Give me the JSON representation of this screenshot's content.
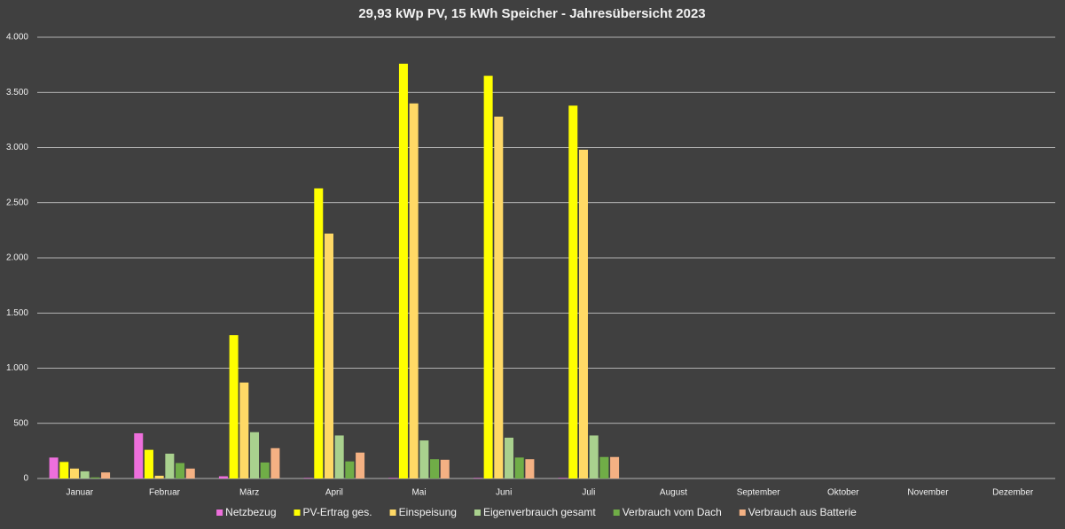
{
  "chart_data": {
    "type": "bar",
    "title": "29,93 kWp PV, 15 kWh Speicher - Jahresübersicht 2023",
    "categories": [
      "Januar",
      "Februar",
      "März",
      "April",
      "Mai",
      "Juni",
      "Juli",
      "August",
      "September",
      "Oktober",
      "November",
      "Dezember"
    ],
    "series": [
      {
        "name": "Netzbezug",
        "color": "#ee6fdc",
        "values": [
          190,
          410,
          20,
          5,
          5,
          5,
          5,
          null,
          null,
          null,
          null,
          null
        ]
      },
      {
        "name": "PV-Ertrag ges.",
        "color": "#ffff00",
        "values": [
          150,
          260,
          1300,
          2630,
          3760,
          3650,
          3380,
          null,
          null,
          null,
          null,
          null
        ]
      },
      {
        "name": "Einspeisung",
        "color": "#ffd966",
        "values": [
          90,
          25,
          870,
          2220,
          3400,
          3280,
          2980,
          null,
          null,
          null,
          null,
          null
        ]
      },
      {
        "name": "Eigenverbrauch gesamt",
        "color": "#a9d18e",
        "values": [
          65,
          225,
          420,
          390,
          345,
          370,
          390,
          null,
          null,
          null,
          null,
          null
        ]
      },
      {
        "name": "Verbrauch vom Dach",
        "color": "#70ad47",
        "values": [
          10,
          140,
          145,
          155,
          175,
          190,
          195,
          null,
          null,
          null,
          null,
          null
        ]
      },
      {
        "name": "Verbrauch aus Batterie",
        "color": "#f4b183",
        "values": [
          55,
          90,
          275,
          235,
          170,
          175,
          195,
          null,
          null,
          null,
          null,
          null
        ]
      }
    ],
    "ylim": [
      0,
      4000
    ],
    "yticks": [
      0,
      500,
      {
        "value": 1000,
        "label": "1.000"
      },
      {
        "value": 1500,
        "label": "1.500"
      },
      {
        "value": 2000,
        "label": "2.000"
      },
      {
        "value": 2500,
        "label": "2.500"
      },
      {
        "value": 3000,
        "label": "3.000"
      },
      {
        "value": 3500,
        "label": "3.500"
      },
      {
        "value": 4000,
        "label": "4.000"
      }
    ],
    "grid": true,
    "legend": "bottom"
  }
}
